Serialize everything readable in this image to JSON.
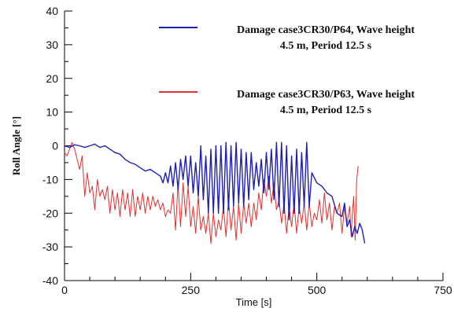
{
  "chart_data": {
    "type": "line",
    "title": "",
    "xlabel": "Time [s]",
    "ylabel": "Roll Angle [°]",
    "xlim": [
      0,
      750
    ],
    "ylim": [
      -40,
      40
    ],
    "x_ticks": [
      0,
      250,
      500,
      750
    ],
    "x_tick_labels": [
      "0",
      "250",
      "500",
      "750"
    ],
    "y_ticks": [
      -40,
      -30,
      -20,
      -10,
      0,
      10,
      20,
      30,
      40
    ],
    "y_tick_labels": [
      "-40",
      "-30",
      "-20",
      "-10",
      "0",
      "10",
      "20",
      "30",
      "40"
    ],
    "grid": false,
    "legend_position": "top-right",
    "series": [
      {
        "name": "Damage case3CR30/P64, Wave height 4.5 m, Period 12.5 s",
        "legend_lines": [
          "Damage case3CR30/P64, Wave height",
          "4.5 m, Period 12.5 s"
        ],
        "color": "#2020b0",
        "points": [
          [
            0,
            0
          ],
          [
            10,
            -0.5
          ],
          [
            20,
            0.3
          ],
          [
            30,
            0
          ],
          [
            40,
            -0.5
          ],
          [
            50,
            0
          ],
          [
            60,
            0.5
          ],
          [
            70,
            -0.5
          ],
          [
            80,
            0
          ],
          [
            90,
            -1
          ],
          [
            100,
            -2
          ],
          [
            110,
            -2.5
          ],
          [
            120,
            -4
          ],
          [
            130,
            -5
          ],
          [
            140,
            -5.5
          ],
          [
            150,
            -6.5
          ],
          [
            160,
            -7.5
          ],
          [
            170,
            -7
          ],
          [
            180,
            -8
          ],
          [
            190,
            -9
          ],
          [
            195,
            -11
          ],
          [
            200,
            -8
          ],
          [
            205,
            -11
          ],
          [
            210,
            -6
          ],
          [
            215,
            -12
          ],
          [
            220,
            -5
          ],
          [
            225,
            -13
          ],
          [
            230,
            -4
          ],
          [
            235,
            -10
          ],
          [
            240,
            -3
          ],
          [
            245,
            -12
          ],
          [
            250,
            -3
          ],
          [
            255,
            -14
          ],
          [
            260,
            -5
          ],
          [
            265,
            -15
          ],
          [
            270,
            0
          ],
          [
            275,
            -16
          ],
          [
            280,
            -3
          ],
          [
            285,
            -20
          ],
          [
            290,
            -1
          ],
          [
            295,
            -20
          ],
          [
            300,
            0
          ],
          [
            305,
            -20
          ],
          [
            310,
            0
          ],
          [
            315,
            -20
          ],
          [
            320,
            1
          ],
          [
            325,
            -19
          ],
          [
            330,
            0
          ],
          [
            335,
            -18
          ],
          [
            340,
            1
          ],
          [
            345,
            -17
          ],
          [
            350,
            -1
          ],
          [
            355,
            -18
          ],
          [
            360,
            -2
          ],
          [
            365,
            -16
          ],
          [
            370,
            -2
          ],
          [
            375,
            -13
          ],
          [
            380,
            -5
          ],
          [
            385,
            -12
          ],
          [
            390,
            -4
          ],
          [
            395,
            -14
          ],
          [
            400,
            -2
          ],
          [
            405,
            -13
          ],
          [
            410,
            -1
          ],
          [
            415,
            -16
          ],
          [
            420,
            1
          ],
          [
            425,
            -18
          ],
          [
            430,
            1
          ],
          [
            435,
            -20
          ],
          [
            440,
            0
          ],
          [
            445,
            -22
          ],
          [
            450,
            -3
          ],
          [
            455,
            -20
          ],
          [
            460,
            -1
          ],
          [
            465,
            -20
          ],
          [
            470,
            -2
          ],
          [
            475,
            -18
          ],
          [
            480,
            1
          ],
          [
            485,
            -18
          ],
          [
            490,
            -8
          ],
          [
            500,
            -11
          ],
          [
            510,
            -12
          ],
          [
            520,
            -14
          ],
          [
            530,
            -15
          ],
          [
            540,
            -20
          ],
          [
            550,
            -21
          ],
          [
            555,
            -17
          ],
          [
            560,
            -24
          ],
          [
            565,
            -22
          ],
          [
            570,
            -27
          ],
          [
            575,
            -24
          ],
          [
            580,
            -26
          ],
          [
            585,
            -23
          ],
          [
            590,
            -25
          ],
          [
            595,
            -29
          ]
        ]
      },
      {
        "name": "Damage case3CR30/P63, Wave height 4.5 m, Period 12.5 s",
        "legend_lines": [
          "Damage case3CR30/P63, Wave height",
          "4.5 m, Period 12.5 s"
        ],
        "color": "#e23030",
        "points": [
          [
            0,
            -2
          ],
          [
            5,
            -3
          ],
          [
            10,
            -1
          ],
          [
            15,
            1
          ],
          [
            20,
            -1
          ],
          [
            25,
            -4
          ],
          [
            30,
            -7
          ],
          [
            35,
            -3
          ],
          [
            40,
            -15
          ],
          [
            45,
            -8
          ],
          [
            50,
            -14
          ],
          [
            55,
            -12
          ],
          [
            60,
            -19
          ],
          [
            65,
            -10
          ],
          [
            70,
            -15
          ],
          [
            75,
            -13
          ],
          [
            80,
            -16
          ],
          [
            85,
            -12
          ],
          [
            90,
            -20
          ],
          [
            95,
            -13
          ],
          [
            100,
            -19
          ],
          [
            105,
            -14
          ],
          [
            110,
            -21
          ],
          [
            115,
            -13
          ],
          [
            120,
            -19
          ],
          [
            125,
            -14
          ],
          [
            130,
            -21
          ],
          [
            135,
            -13
          ],
          [
            140,
            -21
          ],
          [
            145,
            -15
          ],
          [
            150,
            -19
          ],
          [
            155,
            -14
          ],
          [
            160,
            -20
          ],
          [
            165,
            -15
          ],
          [
            170,
            -19
          ],
          [
            175,
            -15
          ],
          [
            180,
            -18
          ],
          [
            185,
            -16
          ],
          [
            190,
            -19
          ],
          [
            195,
            -17
          ],
          [
            200,
            -21
          ],
          [
            205,
            -19
          ],
          [
            210,
            -20
          ],
          [
            215,
            -14
          ],
          [
            220,
            -25
          ],
          [
            225,
            -11
          ],
          [
            230,
            -24
          ],
          [
            235,
            -11
          ],
          [
            240,
            -21
          ],
          [
            245,
            -12
          ],
          [
            250,
            -24
          ],
          [
            255,
            -18
          ],
          [
            260,
            -26
          ],
          [
            265,
            -15
          ],
          [
            270,
            -25
          ],
          [
            275,
            -21
          ],
          [
            280,
            -26
          ],
          [
            285,
            -20
          ],
          [
            290,
            -29
          ],
          [
            295,
            -20
          ],
          [
            300,
            -27
          ],
          [
            305,
            -22
          ],
          [
            310,
            -25
          ],
          [
            315,
            -18
          ],
          [
            320,
            -27
          ],
          [
            325,
            -16
          ],
          [
            330,
            -25
          ],
          [
            335,
            -18
          ],
          [
            340,
            -28
          ],
          [
            345,
            -17
          ],
          [
            350,
            -26
          ],
          [
            355,
            -17
          ],
          [
            360,
            -23
          ],
          [
            365,
            -17
          ],
          [
            370,
            -24
          ],
          [
            375,
            -17
          ],
          [
            380,
            -22
          ],
          [
            385,
            -14
          ],
          [
            390,
            -19
          ],
          [
            395,
            -10
          ],
          [
            400,
            -15
          ],
          [
            405,
            -9
          ],
          [
            410,
            -17
          ],
          [
            415,
            -11
          ],
          [
            420,
            -19
          ],
          [
            425,
            -16
          ],
          [
            430,
            -23
          ],
          [
            435,
            -17
          ],
          [
            440,
            -26
          ],
          [
            445,
            -18
          ],
          [
            450,
            -24
          ],
          [
            455,
            -17
          ],
          [
            460,
            -26
          ],
          [
            465,
            -18
          ],
          [
            470,
            -23
          ],
          [
            475,
            -17
          ],
          [
            480,
            -25
          ],
          [
            485,
            -17
          ],
          [
            490,
            -24
          ],
          [
            495,
            -20
          ],
          [
            500,
            -22
          ],
          [
            505,
            -16
          ],
          [
            510,
            -23
          ],
          [
            515,
            -14
          ],
          [
            520,
            -22
          ],
          [
            525,
            -17
          ],
          [
            530,
            -25
          ],
          [
            535,
            -18
          ],
          [
            540,
            -20
          ],
          [
            545,
            -17
          ],
          [
            550,
            -26
          ],
          [
            555,
            -18
          ],
          [
            560,
            -23
          ],
          [
            565,
            -18
          ],
          [
            568,
            -27
          ],
          [
            570,
            -21
          ],
          [
            573,
            -15
          ],
          [
            576,
            -28
          ],
          [
            579,
            -10
          ],
          [
            582,
            -6
          ]
        ]
      }
    ]
  }
}
